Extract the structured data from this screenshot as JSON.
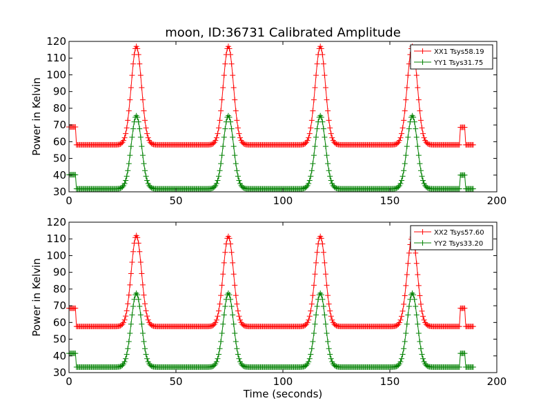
{
  "chart_data": [
    {
      "type": "line",
      "title": "moon, ID:36731 Calibrated Amplitude",
      "xlabel": "",
      "ylabel": "Power in Kelvin",
      "xlim": [
        0,
        200
      ],
      "ylim": [
        30,
        120
      ],
      "xticks": [
        "0",
        "50",
        "100",
        "150",
        "200"
      ],
      "yticks": [
        "30",
        "40",
        "50",
        "60",
        "70",
        "80",
        "90",
        "100",
        "110",
        "120"
      ],
      "legend_position": "top-right",
      "series": [
        {
          "name": "XX1 Tsys58.19",
          "color": "#ff0000",
          "marker": "+",
          "baseline": 58.1,
          "high_segments": [
            {
              "x_start": 0,
              "x_end": 3,
              "value": 68.8
            },
            {
              "x_start": 183,
              "x_end": 185,
              "value": 68.6
            }
          ],
          "peaks": [
            {
              "x": 31.5,
              "y": 117
            },
            {
              "x": 74.5,
              "y": 117
            },
            {
              "x": 117.5,
              "y": 117
            },
            {
              "x": 160.5,
              "y": 117
            }
          ]
        },
        {
          "name": "YY1 Tsys31.75",
          "color": "#008000",
          "marker": "+",
          "baseline": 31.8,
          "high_segments": [
            {
              "x_start": 0,
              "x_end": 3,
              "value": 40.2
            },
            {
              "x_start": 183,
              "x_end": 185,
              "value": 40.0
            }
          ],
          "peaks": [
            {
              "x": 31.5,
              "y": 75.5
            },
            {
              "x": 74.5,
              "y": 75.5
            },
            {
              "x": 117.5,
              "y": 75.5
            },
            {
              "x": 160.5,
              "y": 75.5
            }
          ]
        }
      ]
    },
    {
      "type": "line",
      "title": "",
      "xlabel": "Time (seconds)",
      "ylabel": "Power in Kelvin",
      "xlim": [
        0,
        200
      ],
      "ylim": [
        30,
        120
      ],
      "xticks": [
        "0",
        "50",
        "100",
        "150",
        "200"
      ],
      "yticks": [
        "30",
        "40",
        "50",
        "60",
        "70",
        "80",
        "90",
        "100",
        "110",
        "120"
      ],
      "legend_position": "top-right",
      "series": [
        {
          "name": "XX2 Tsys57.60",
          "color": "#ff0000",
          "marker": "+",
          "baseline": 57.6,
          "high_segments": [
            {
              "x_start": 0,
              "x_end": 3,
              "value": 68.5
            },
            {
              "x_start": 183,
              "x_end": 185,
              "value": 68.5
            }
          ],
          "peaks": [
            {
              "x": 31.5,
              "y": 112
            },
            {
              "x": 74.5,
              "y": 111.5
            },
            {
              "x": 117.5,
              "y": 111.5
            },
            {
              "x": 160.5,
              "y": 111
            }
          ]
        },
        {
          "name": "YY2 Tsys33.20",
          "color": "#008000",
          "marker": "+",
          "baseline": 33.3,
          "high_segments": [
            {
              "x_start": 0,
              "x_end": 3,
              "value": 41.5
            },
            {
              "x_start": 183,
              "x_end": 185,
              "value": 41.5
            }
          ],
          "peaks": [
            {
              "x": 31.5,
              "y": 77.5
            },
            {
              "x": 74.5,
              "y": 77.5
            },
            {
              "x": 117.5,
              "y": 77.5
            },
            {
              "x": 160.5,
              "y": 77.5
            }
          ]
        }
      ]
    }
  ]
}
